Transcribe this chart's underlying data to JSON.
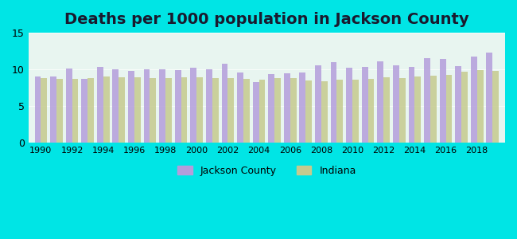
{
  "title": "Deaths per 1000 population in Jackson County",
  "years": [
    1990,
    1991,
    1992,
    1993,
    1994,
    1995,
    1996,
    1997,
    1998,
    1999,
    2000,
    2001,
    2002,
    2003,
    2004,
    2005,
    2006,
    2007,
    2008,
    2009,
    2010,
    2011,
    2012,
    2013,
    2014,
    2015,
    2016,
    2017,
    2018,
    2019
  ],
  "jackson_county": [
    9.1,
    9.1,
    10.1,
    8.7,
    10.4,
    10.0,
    9.8,
    10.0,
    10.0,
    9.9,
    10.2,
    10.0,
    10.8,
    9.6,
    8.3,
    9.4,
    9.5,
    9.6,
    10.6,
    11.0,
    10.2,
    10.3,
    11.1,
    10.6,
    10.3,
    11.5,
    11.4,
    10.5,
    11.8,
    12.3
  ],
  "indiana": [
    8.8,
    8.7,
    8.7,
    8.8,
    9.0,
    8.9,
    8.9,
    8.8,
    8.8,
    8.9,
    8.9,
    8.8,
    8.8,
    8.7,
    8.6,
    8.8,
    8.8,
    8.5,
    8.4,
    8.6,
    8.6,
    8.7,
    8.9,
    8.8,
    9.0,
    9.2,
    9.3,
    9.7,
    9.9,
    9.8
  ],
  "jackson_color": "#b39ddb",
  "indiana_color": "#c5ca8e",
  "background_color": "#e0f7f7",
  "plot_bg_top": "#e8f5f0",
  "plot_bg_bottom": "#d4f0e8",
  "ylim": [
    0,
    15
  ],
  "yticks": [
    0,
    5,
    10,
    15
  ],
  "title_fontsize": 14,
  "legend_labels": [
    "Jackson County",
    "Indiana"
  ],
  "xlabel_fontsize": 9,
  "bar_width": 0.4,
  "figure_bg": "#00e5e5"
}
